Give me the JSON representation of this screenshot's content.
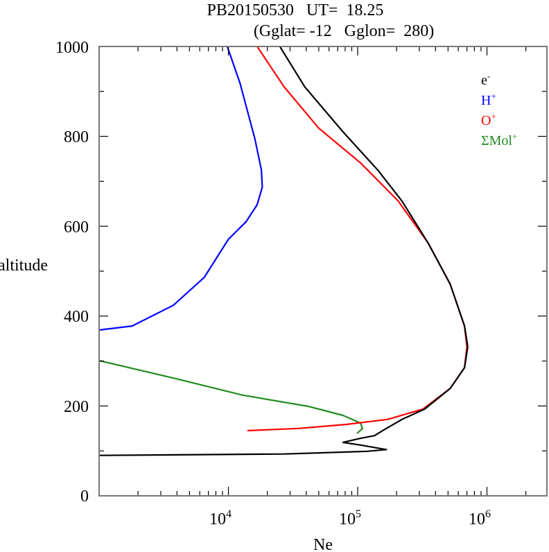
{
  "chart_data": {
    "type": "line",
    "title_line1": "PB20150530   UT=  18.25",
    "title_line2": "(Gglat= -12   Gglon=  280)",
    "xlabel": "Ne",
    "ylabel": "altitude",
    "xscale": "log",
    "xlim": [
      1000,
      3000000
    ],
    "ylim": [
      0,
      1000
    ],
    "x_tick_labels": [
      {
        "base": "10",
        "exp": "4",
        "value": 10000
      },
      {
        "base": "10",
        "exp": "5",
        "value": 100000
      },
      {
        "base": "10",
        "exp": "6",
        "value": 1000000
      }
    ],
    "y_ticks": [
      0,
      200,
      400,
      600,
      800,
      1000
    ],
    "y_tick_labels": [
      "0",
      "200",
      "400",
      "600",
      "800",
      "1000"
    ],
    "legend_placement": "top-right",
    "series": [
      {
        "name": "e",
        "sup": "-",
        "color": "#000000",
        "points": [
          [
            25000,
            1000
          ],
          [
            39000,
            910
          ],
          [
            77000,
            810
          ],
          [
            143000,
            725
          ],
          [
            220000,
            656
          ],
          [
            350000,
            563
          ],
          [
            520000,
            471
          ],
          [
            670000,
            378
          ],
          [
            710000,
            332
          ],
          [
            670000,
            285
          ],
          [
            520000,
            239
          ],
          [
            330000,
            193
          ],
          [
            220000,
            170
          ],
          [
            160000,
            147
          ],
          [
            135000,
            134
          ],
          [
            105000,
            128
          ],
          [
            77000,
            119
          ],
          [
            105000,
            113
          ],
          [
            167000,
            103
          ],
          [
            118000,
            99
          ],
          [
            27000,
            93
          ],
          [
            1000,
            90
          ]
        ]
      },
      {
        "name": "H",
        "sup": "+",
        "color": "#0000ff",
        "points": [
          [
            9800,
            1000
          ],
          [
            12300,
            918
          ],
          [
            16000,
            795
          ],
          [
            18000,
            725
          ],
          [
            18300,
            687
          ],
          [
            16700,
            648
          ],
          [
            13700,
            610
          ],
          [
            10000,
            571
          ],
          [
            6500,
            486
          ],
          [
            3750,
            424
          ],
          [
            1800,
            378
          ],
          [
            1000,
            369
          ]
        ]
      },
      {
        "name": "O",
        "sup": "+",
        "color": "#ff0000",
        "points": [
          [
            16700,
            1000
          ],
          [
            27000,
            910
          ],
          [
            50000,
            818
          ],
          [
            105000,
            741
          ],
          [
            206000,
            656
          ],
          [
            350000,
            563
          ],
          [
            520000,
            471
          ],
          [
            670000,
            378
          ],
          [
            700000,
            332
          ],
          [
            670000,
            285
          ],
          [
            520000,
            239
          ],
          [
            320000,
            193
          ],
          [
            170000,
            170
          ],
          [
            82000,
            159
          ],
          [
            35000,
            150
          ],
          [
            14000,
            145
          ]
        ]
      },
      {
        "name": "ΣMol",
        "sup": "+",
        "color": "#228b22",
        "points": [
          [
            1000,
            301
          ],
          [
            3750,
            262
          ],
          [
            12900,
            224
          ],
          [
            41500,
            199
          ],
          [
            77000,
            179
          ],
          [
            105000,
            162
          ],
          [
            109000,
            150
          ],
          [
            99000,
            139
          ]
        ]
      }
    ]
  }
}
